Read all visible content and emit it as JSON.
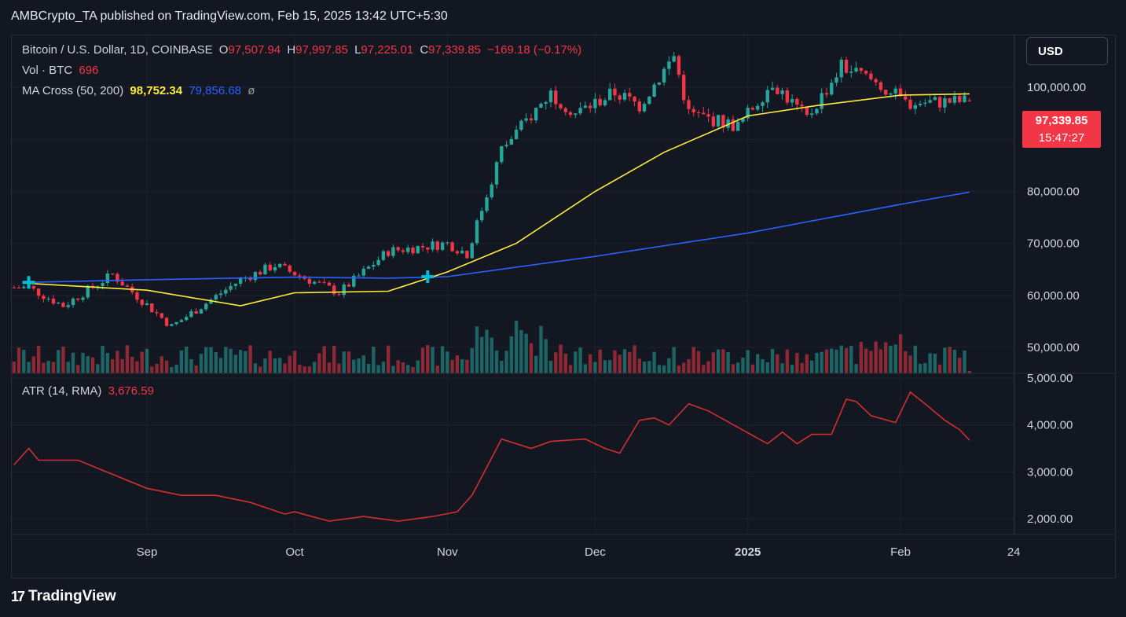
{
  "header": {
    "text": "AMBCrypto_TA published on TradingView.com, Feb 15, 2025 13:42 UTC+5:30"
  },
  "legend": {
    "symbol": "Bitcoin / U.S. Dollar, 1D, COINBASE",
    "open_label": "O",
    "open": "97,507.94",
    "high_label": "H",
    "high": "97,997.85",
    "low_label": "L",
    "low": "97,225.01",
    "close_label": "C",
    "close": "97,339.85",
    "change": "−169.18 (−0.17%)",
    "vol_label": "Vol · BTC",
    "vol": "696",
    "ma_label": "MA Cross (50, 200)",
    "ma50": "98,752.34",
    "ma200": "79,856.68",
    "ma_suffix": "ø",
    "atr_label": "ATR (14, RMA)",
    "atr": "3,676.59"
  },
  "currency_button": "USD",
  "price_tag": {
    "price": "97,339.85",
    "countdown": "15:47:27"
  },
  "footer": {
    "logo_glyph": "17",
    "brand": "TradingView"
  },
  "colors": {
    "background": "#131722",
    "up": "#26a69a",
    "down": "#f23645",
    "ma50": "#ffeb3b",
    "ma200": "#2962ff",
    "atr": "#d32f2f",
    "cross": "#00bcd4"
  },
  "chart_data": [
    {
      "type": "candlestick",
      "title": "Bitcoin / U.S. Dollar, 1D, COINBASE",
      "ylim": [
        45000,
        110000
      ],
      "y_ticks": [
        "100,000.00",
        "90,000.00",
        "80,000.00",
        "70,000.00",
        "60,000.00",
        "50,000.00"
      ],
      "x_ticks": [
        "Sep",
        "Oct",
        "Nov",
        "Dec",
        "2025",
        "Feb",
        "24"
      ],
      "anchors": [
        {
          "x": "Aug 8",
          "y": 61500
        },
        {
          "x": "Aug 15",
          "y": 58000
        },
        {
          "x": "Aug 25",
          "y": 64000
        },
        {
          "x": "Sep 6",
          "y": 54000
        },
        {
          "x": "Sep 20",
          "y": 63000
        },
        {
          "x": "Sep 27",
          "y": 65800
        },
        {
          "x": "Oct 10",
          "y": 60500
        },
        {
          "x": "Oct 20",
          "y": 68500
        },
        {
          "x": "Nov 1",
          "y": 70000
        },
        {
          "x": "Nov 5",
          "y": 68000
        },
        {
          "x": "Nov 12",
          "y": 88000
        },
        {
          "x": "Nov 22",
          "y": 99000
        },
        {
          "x": "Nov 27",
          "y": 95000
        },
        {
          "x": "Dec 5",
          "y": 99000
        },
        {
          "x": "Dec 10",
          "y": 96500
        },
        {
          "x": "Dec 17",
          "y": 106000
        },
        {
          "x": "Dec 20",
          "y": 95000
        },
        {
          "x": "Dec 30",
          "y": 92500
        },
        {
          "x": "Jan 6",
          "y": 101000
        },
        {
          "x": "Jan 13",
          "y": 94000
        },
        {
          "x": "Jan 20",
          "y": 104000
        },
        {
          "x": "Jan 27",
          "y": 101000
        },
        {
          "x": "Feb 2",
          "y": 97000
        },
        {
          "x": "Feb 15",
          "y": 97339.85
        }
      ],
      "ma50": [
        {
          "x": "Aug 8",
          "y": 62300
        },
        {
          "x": "Sep 1",
          "y": 61000
        },
        {
          "x": "Sep 20",
          "y": 58000
        },
        {
          "x": "Oct 1",
          "y": 60500
        },
        {
          "x": "Oct 20",
          "y": 60800
        },
        {
          "x": "Nov 1",
          "y": 64500
        },
        {
          "x": "Nov 15",
          "y": 70000
        },
        {
          "x": "Dec 1",
          "y": 80000
        },
        {
          "x": "Dec 15",
          "y": 87500
        },
        {
          "x": "Jan 1",
          "y": 94500
        },
        {
          "x": "Jan 15",
          "y": 96500
        },
        {
          "x": "Feb 1",
          "y": 98500
        },
        {
          "x": "Feb 15",
          "y": 98752.34
        }
      ],
      "ma200": [
        {
          "x": "Aug 8",
          "y": 62500
        },
        {
          "x": "Sep 1",
          "y": 63000
        },
        {
          "x": "Oct 1",
          "y": 63500
        },
        {
          "x": "Oct 20",
          "y": 63300
        },
        {
          "x": "Nov 1",
          "y": 63600
        },
        {
          "x": "Dec 1",
          "y": 67500
        },
        {
          "x": "Jan 1",
          "y": 72000
        },
        {
          "x": "Feb 1",
          "y": 77500
        },
        {
          "x": "Feb 15",
          "y": 79856.68
        }
      ],
      "cross_markers": [
        {
          "x": "Aug 8",
          "y": 62500
        },
        {
          "x": "Oct 28",
          "y": 63600
        }
      ]
    },
    {
      "type": "line",
      "title": "ATR (14, RMA)",
      "ylim": [
        1700,
        5000
      ],
      "y_ticks": [
        "5,000.00",
        "4,000.00",
        "3,000.00",
        "2,000.00"
      ],
      "points": [
        {
          "x": "Aug 5",
          "y": 3150
        },
        {
          "x": "Aug 8",
          "y": 3500
        },
        {
          "x": "Aug 10",
          "y": 3250
        },
        {
          "x": "Aug 18",
          "y": 3250
        },
        {
          "x": "Aug 25",
          "y": 2950
        },
        {
          "x": "Sep 1",
          "y": 2650
        },
        {
          "x": "Sep 8",
          "y": 2500
        },
        {
          "x": "Sep 15",
          "y": 2500
        },
        {
          "x": "Sep 22",
          "y": 2350
        },
        {
          "x": "Sep 29",
          "y": 2100
        },
        {
          "x": "Oct 1",
          "y": 2150
        },
        {
          "x": "Oct 8",
          "y": 1950
        },
        {
          "x": "Oct 15",
          "y": 2050
        },
        {
          "x": "Oct 22",
          "y": 1950
        },
        {
          "x": "Oct 29",
          "y": 2050
        },
        {
          "x": "Nov 3",
          "y": 2150
        },
        {
          "x": "Nov 6",
          "y": 2500
        },
        {
          "x": "Nov 12",
          "y": 3700
        },
        {
          "x": "Nov 18",
          "y": 3500
        },
        {
          "x": "Nov 22",
          "y": 3650
        },
        {
          "x": "Nov 29",
          "y": 3700
        },
        {
          "x": "Dec 3",
          "y": 3500
        },
        {
          "x": "Dec 6",
          "y": 3400
        },
        {
          "x": "Dec 10",
          "y": 4100
        },
        {
          "x": "Dec 13",
          "y": 4150
        },
        {
          "x": "Dec 16",
          "y": 4000
        },
        {
          "x": "Dec 20",
          "y": 4450
        },
        {
          "x": "Dec 24",
          "y": 4300
        },
        {
          "x": "Dec 30",
          "y": 3950
        },
        {
          "x": "Jan 5",
          "y": 3600
        },
        {
          "x": "Jan 8",
          "y": 3850
        },
        {
          "x": "Jan 11",
          "y": 3600
        },
        {
          "x": "Jan 14",
          "y": 3800
        },
        {
          "x": "Jan 18",
          "y": 3800
        },
        {
          "x": "Jan 21",
          "y": 4550
        },
        {
          "x": "Jan 23",
          "y": 4500
        },
        {
          "x": "Jan 26",
          "y": 4200
        },
        {
          "x": "Jan 31",
          "y": 4050
        },
        {
          "x": "Feb 3",
          "y": 4700
        },
        {
          "x": "Feb 6",
          "y": 4450
        },
        {
          "x": "Feb 10",
          "y": 4100
        },
        {
          "x": "Feb 13",
          "y": 3900
        },
        {
          "x": "Feb 15",
          "y": 3676.59
        }
      ]
    }
  ]
}
